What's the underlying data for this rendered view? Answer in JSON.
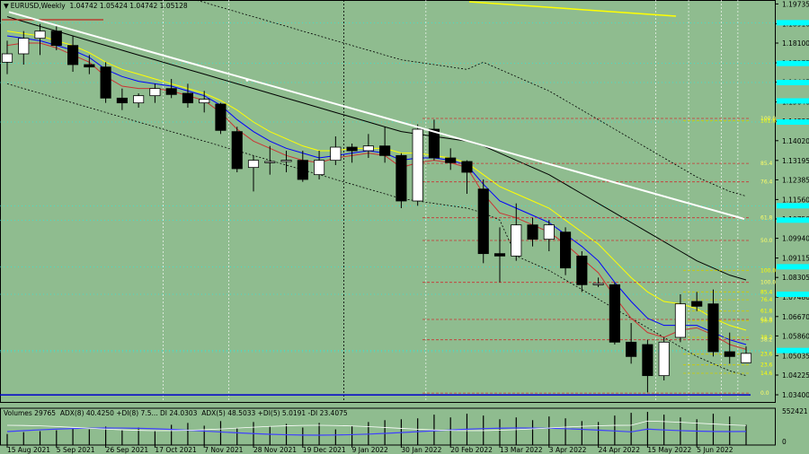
{
  "header": {
    "symbol_line": "EURUSD,Weekly",
    "ohlc": "1.04742 1.05424 1.04742 1.05128",
    "triangle_icon": "▼"
  },
  "indicator_header": {
    "volumes": "Volumes 29765",
    "adx8": "ADX(8) 40.4250 +DI(8) 7.5... DI 24.0303",
    "adx5": "ADX(5) 48.5033 +DI(5) 5.0191 -DI 23.4075"
  },
  "colors": {
    "background": "#8fbc8f",
    "bull": "#ffffff",
    "bear": "#000000",
    "trendline": "#ffffff",
    "top_trendline": "#ffff00",
    "fib": "#cc3333",
    "hline": "#00ffff",
    "support": "#0000cc",
    "adx_line": "#4040ff",
    "di_line": "#ffffff"
  },
  "chart_data": {
    "type": "candlestick",
    "y_ticks": [
      "1.19735",
      "1.18910",
      "1.18100",
      "1.17275",
      "1.16465",
      "1.15640",
      "1.14830",
      "1.14020",
      "1.13195",
      "1.12385",
      "1.11560",
      "1.10750",
      "1.09940",
      "1.09115",
      "1.08305",
      "1.07480",
      "1.06670",
      "1.05860",
      "1.05035",
      "1.04225",
      "1.03400"
    ],
    "y_range": [
      1.031,
      1.199
    ],
    "x_labels": [
      "15 Aug 2021",
      "5 Sep 2021",
      "26 Sep 2021",
      "17 Oct 2021",
      "7 Nov 2021",
      "28 Nov 2021",
      "19 Dec 2021",
      "9 Jan 2022",
      "30 Jan 2022",
      "20 Feb 2022",
      "13 Mar 2022",
      "3 Apr 2022",
      "24 Apr 2022",
      "15 May 2022",
      "5 Jun 2022"
    ],
    "candles": [
      {
        "o": 1.173,
        "h": 1.182,
        "l": 1.168,
        "c": 1.1765
      },
      {
        "o": 1.1765,
        "h": 1.186,
        "l": 1.172,
        "c": 1.183
      },
      {
        "o": 1.183,
        "h": 1.189,
        "l": 1.176,
        "c": 1.186
      },
      {
        "o": 1.186,
        "h": 1.188,
        "l": 1.178,
        "c": 1.18
      },
      {
        "o": 1.18,
        "h": 1.184,
        "l": 1.169,
        "c": 1.172
      },
      {
        "o": 1.172,
        "h": 1.176,
        "l": 1.168,
        "c": 1.171
      },
      {
        "o": 1.171,
        "h": 1.173,
        "l": 1.156,
        "c": 1.158
      },
      {
        "o": 1.158,
        "h": 1.162,
        "l": 1.153,
        "c": 1.156
      },
      {
        "o": 1.156,
        "h": 1.16,
        "l": 1.154,
        "c": 1.159
      },
      {
        "o": 1.159,
        "h": 1.164,
        "l": 1.156,
        "c": 1.162
      },
      {
        "o": 1.162,
        "h": 1.166,
        "l": 1.158,
        "c": 1.1595
      },
      {
        "o": 1.16,
        "h": 1.164,
        "l": 1.154,
        "c": 1.156
      },
      {
        "o": 1.156,
        "h": 1.161,
        "l": 1.152,
        "c": 1.1575
      },
      {
        "o": 1.1555,
        "h": 1.156,
        "l": 1.143,
        "c": 1.1445
      },
      {
        "o": 1.144,
        "h": 1.146,
        "l": 1.127,
        "c": 1.1285
      },
      {
        "o": 1.129,
        "h": 1.134,
        "l": 1.119,
        "c": 1.132
      },
      {
        "o": 1.131,
        "h": 1.138,
        "l": 1.126,
        "c": 1.1315
      },
      {
        "o": 1.1315,
        "h": 1.136,
        "l": 1.127,
        "c": 1.132
      },
      {
        "o": 1.132,
        "h": 1.136,
        "l": 1.123,
        "c": 1.124
      },
      {
        "o": 1.126,
        "h": 1.136,
        "l": 1.124,
        "c": 1.132
      },
      {
        "o": 1.132,
        "h": 1.142,
        "l": 1.13,
        "c": 1.1375
      },
      {
        "o": 1.1375,
        "h": 1.139,
        "l": 1.131,
        "c": 1.136
      },
      {
        "o": 1.136,
        "h": 1.143,
        "l": 1.133,
        "c": 1.138
      },
      {
        "o": 1.138,
        "h": 1.146,
        "l": 1.131,
        "c": 1.134
      },
      {
        "o": 1.134,
        "h": 1.135,
        "l": 1.112,
        "c": 1.115
      },
      {
        "o": 1.115,
        "h": 1.147,
        "l": 1.113,
        "c": 1.145
      },
      {
        "o": 1.145,
        "h": 1.149,
        "l": 1.132,
        "c": 1.133
      },
      {
        "o": 1.133,
        "h": 1.137,
        "l": 1.128,
        "c": 1.131
      },
      {
        "o": 1.1315,
        "h": 1.132,
        "l": 1.118,
        "c": 1.127
      },
      {
        "o": 1.12,
        "h": 1.124,
        "l": 1.089,
        "c": 1.093
      },
      {
        "o": 1.093,
        "h": 1.104,
        "l": 1.081,
        "c": 1.092
      },
      {
        "o": 1.092,
        "h": 1.114,
        "l": 1.09,
        "c": 1.105
      },
      {
        "o": 1.105,
        "h": 1.108,
        "l": 1.096,
        "c": 1.099
      },
      {
        "o": 1.099,
        "h": 1.107,
        "l": 1.094,
        "c": 1.105
      },
      {
        "o": 1.102,
        "h": 1.104,
        "l": 1.084,
        "c": 1.087
      },
      {
        "o": 1.092,
        "h": 1.094,
        "l": 1.077,
        "c": 1.08
      },
      {
        "o": 1.08,
        "h": 1.083,
        "l": 1.079,
        "c": 1.0805
      },
      {
        "o": 1.08,
        "h": 1.081,
        "l": 1.055,
        "c": 1.056
      },
      {
        "o": 1.056,
        "h": 1.064,
        "l": 1.047,
        "c": 1.05
      },
      {
        "o": 1.055,
        "h": 1.057,
        "l": 1.035,
        "c": 1.042
      },
      {
        "o": 1.042,
        "h": 1.058,
        "l": 1.04,
        "c": 1.056
      },
      {
        "o": 1.058,
        "h": 1.076,
        "l": 1.056,
        "c": 1.072
      },
      {
        "o": 1.073,
        "h": 1.077,
        "l": 1.069,
        "c": 1.071
      },
      {
        "o": 1.072,
        "h": 1.078,
        "l": 1.05,
        "c": 1.052
      },
      {
        "o": 1.052,
        "h": 1.06,
        "l": 1.047,
        "c": 1.05
      },
      {
        "o": 1.0474,
        "h": 1.0542,
        "l": 1.0474,
        "c": 1.0513
      }
    ],
    "moving_averages": [
      {
        "color": "#000000",
        "values": [
          1.192,
          1.19,
          1.188,
          1.186,
          1.184,
          1.182,
          1.18,
          1.178,
          1.176,
          1.174,
          1.172,
          1.17,
          1.168,
          1.166,
          1.164,
          1.162,
          1.16,
          1.158,
          1.156,
          1.154,
          1.152,
          1.15,
          1.148,
          1.146,
          1.144,
          1.143,
          1.142,
          1.141,
          1.14,
          1.138,
          1.135,
          1.132,
          1.129,
          1.126,
          1.122,
          1.118,
          1.114,
          1.11,
          1.106,
          1.102,
          1.098,
          1.094,
          1.09,
          1.087,
          1.084,
          1.082
        ]
      },
      {
        "color": "#ffff00",
        "values": [
          1.186,
          1.185,
          1.184,
          1.182,
          1.18,
          1.177,
          1.173,
          1.17,
          1.168,
          1.166,
          1.164,
          1.162,
          1.16,
          1.157,
          1.153,
          1.148,
          1.144,
          1.141,
          1.138,
          1.136,
          1.136,
          1.137,
          1.137,
          1.137,
          1.135,
          1.135,
          1.134,
          1.133,
          1.131,
          1.126,
          1.121,
          1.118,
          1.115,
          1.112,
          1.107,
          1.102,
          1.097,
          1.09,
          1.083,
          1.077,
          1.073,
          1.072,
          1.07,
          1.066,
          1.063,
          1.061
        ]
      },
      {
        "color": "#0000ff",
        "values": [
          1.184,
          1.183,
          1.182,
          1.18,
          1.178,
          1.175,
          1.17,
          1.167,
          1.165,
          1.164,
          1.163,
          1.161,
          1.159,
          1.155,
          1.149,
          1.144,
          1.14,
          1.137,
          1.135,
          1.133,
          1.134,
          1.135,
          1.136,
          1.135,
          1.132,
          1.133,
          1.133,
          1.132,
          1.13,
          1.122,
          1.115,
          1.112,
          1.109,
          1.106,
          1.101,
          1.096,
          1.09,
          1.081,
          1.073,
          1.066,
          1.063,
          1.063,
          1.063,
          1.06,
          1.057,
          1.055
        ]
      },
      {
        "color": "#cc3333",
        "values": [
          1.18,
          1.181,
          1.181,
          1.179,
          1.176,
          1.173,
          1.167,
          1.163,
          1.162,
          1.162,
          1.161,
          1.159,
          1.157,
          1.152,
          1.145,
          1.14,
          1.137,
          1.134,
          1.132,
          1.131,
          1.133,
          1.134,
          1.135,
          1.134,
          1.129,
          1.131,
          1.132,
          1.131,
          1.129,
          1.118,
          1.11,
          1.108,
          1.105,
          1.102,
          1.097,
          1.091,
          1.085,
          1.075,
          1.066,
          1.06,
          1.058,
          1.061,
          1.062,
          1.059,
          1.055,
          1.053
        ]
      }
    ],
    "fib_levels": [
      {
        "price": 1.1495,
        "label": "100.0",
        "color": "#cc3333"
      },
      {
        "price": 1.1485,
        "label": "161.8",
        "color": "#cccc00"
      },
      {
        "price": 1.1307,
        "label": "85.4",
        "color": "#cc3333"
      },
      {
        "price": 1.123,
        "label": "76.4",
        "color": "#cc3333"
      },
      {
        "price": 1.108,
        "label": "61.8",
        "color": "#cc3333"
      },
      {
        "price": 1.0985,
        "label": "50.0",
        "color": "#cc3333"
      },
      {
        "price": 1.086,
        "label": "100.0",
        "color": "#cccc00"
      },
      {
        "price": 1.081,
        "label": "100.0",
        "color": "#cc3333"
      },
      {
        "price": 1.077,
        "label": "85.4",
        "color": "#cccc00"
      },
      {
        "price": 1.0737,
        "label": "76.4",
        "color": "#cccc00"
      },
      {
        "price": 1.069,
        "label": "61.8",
        "color": "#cccc00"
      },
      {
        "price": 1.0655,
        "label": "61.8",
        "color": "#cc3333"
      },
      {
        "price": 1.065,
        "label": "50.0",
        "color": "#cccc00"
      },
      {
        "price": 1.058,
        "label": "38.2",
        "color": "#cccc00"
      },
      {
        "price": 1.057,
        "label": "38.2",
        "color": "#cc3333"
      },
      {
        "price": 1.051,
        "label": "23.6",
        "color": "#cccc00"
      },
      {
        "price": 1.0465,
        "label": "23.6",
        "color": "#cccc00"
      },
      {
        "price": 1.043,
        "label": "14.6",
        "color": "#cccc00"
      },
      {
        "price": 1.0347,
        "label": "0.0",
        "color": "#cc3333"
      }
    ]
  }
}
